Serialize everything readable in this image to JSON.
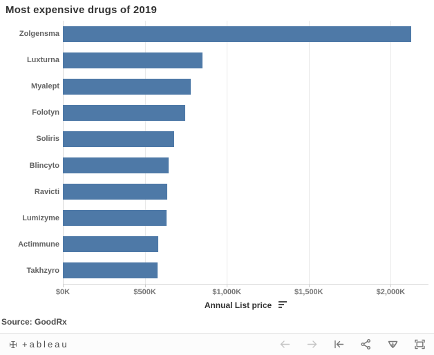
{
  "title": "Most expensive drugs of 2019",
  "chart_data": {
    "type": "bar",
    "orientation": "horizontal",
    "title": "Most expensive drugs of 2019",
    "categories": [
      "Zolgensma",
      "Luxturna",
      "Myalept",
      "Folotyn",
      "Soliris",
      "Blincyto",
      "Ravicti",
      "Lumizyme",
      "Actimmune",
      "Takhzyro"
    ],
    "values": [
      2125,
      850,
      779,
      747,
      678,
      643,
      638,
      633,
      582,
      578
    ],
    "value_unit": "thousand USD per year",
    "xlabel": "Annual List price",
    "ylabel": "",
    "xlim": [
      0,
      2230
    ],
    "xticks": [
      0,
      500,
      1000,
      1500,
      2000
    ],
    "xtick_labels": [
      "$0K",
      "$500K",
      "$1,000K",
      "$1,500K",
      "$2,000K"
    ],
    "grid": "vertical-only",
    "legend": "none",
    "sort_order": "descending",
    "bar_color": "#4e79a7"
  },
  "axis": {
    "title": "Annual List price",
    "sort_icon": "sort-descending"
  },
  "source": {
    "label": "Source: GoodRx"
  },
  "toolbar": {
    "logo_icon": "tableau-logo",
    "logo_text": "+ableau",
    "icons": [
      {
        "name": "undo-arrow",
        "disabled": true
      },
      {
        "name": "redo-arrow",
        "disabled": true
      },
      {
        "name": "revert-reset",
        "disabled": false
      },
      {
        "name": "share-network",
        "disabled": false
      },
      {
        "name": "download-tray",
        "disabled": false
      },
      {
        "name": "fullscreen-brackets",
        "disabled": false
      }
    ]
  },
  "colors": {
    "bar": "#4e79a7",
    "title_text": "#323232",
    "label_text": "#646464",
    "tick_text": "#757575",
    "gridline": "#e9e9e9",
    "axis_line": "#d7d7d7",
    "toolbar_bg": "#fcfcfc",
    "toolbar_border": "#e4e4e4",
    "icon": "#757575",
    "icon_disabled": "#c4c4c4"
  }
}
